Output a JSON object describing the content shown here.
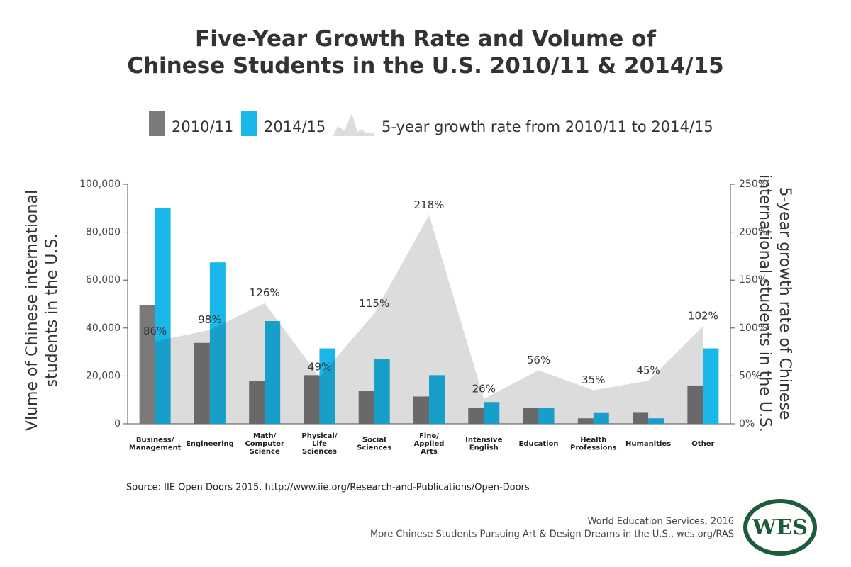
{
  "chart_data": {
    "type": "bar",
    "title": "Five-Year Growth Rate and Volume of\nChinese Students in the U.S. 2010/11 & 2014/15",
    "categories": [
      "Business/\nManagement",
      "Engineering",
      "Math/\nComputer\nScience",
      "Physical/\nLife\nSciences",
      "Social\nSciences",
      "Fine/\nApplied\nArts",
      "Intensive\nEnglish",
      "Education",
      "Health\nProfessions",
      "Humanities",
      "Other"
    ],
    "series": [
      {
        "name": "2010/11",
        "type": "bar",
        "color": "#7a7a7a",
        "values": [
          49500,
          33800,
          18000,
          20300,
          13600,
          11400,
          6800,
          6800,
          2300,
          4600,
          16000
        ]
      },
      {
        "name": "2014/15",
        "type": "bar",
        "color": "#1ab8ea",
        "values": [
          90000,
          67400,
          42900,
          31500,
          27100,
          20300,
          9100,
          6800,
          4500,
          2300,
          31500
        ]
      },
      {
        "name": "5-year growth rate from 2010/11 to 2014/15",
        "type": "area",
        "axis": "y2",
        "color": "#dcdcdc",
        "values": [
          86,
          98,
          126,
          49,
          115,
          218,
          26,
          56,
          35,
          45,
          102
        ],
        "value_labels": [
          "86%",
          "98%",
          "126%",
          "49%",
          "115%",
          "218%",
          "26%",
          "56%",
          "35%",
          "45%",
          "102%"
        ]
      }
    ],
    "ylabel": "Vlume of Chinese international\nstudents in the U.S.",
    "y2label": "5-year growth rate of Chinese\ninternational students in the U.S.",
    "ylim": [
      0,
      100000
    ],
    "yticks": [
      0,
      {
        "value": 20000,
        "label": "20,000"
      },
      {
        "value": 40000,
        "label": "40,000"
      },
      {
        "value": 60000,
        "label": "60,000"
      },
      {
        "value": 80000,
        "label": "80,000"
      },
      {
        "value": 100000,
        "label": "100,000"
      }
    ],
    "y2lim": [
      0,
      250
    ],
    "y2ticks": [
      {
        "value": 0,
        "label": "0%"
      },
      {
        "value": 50,
        "label": "50%"
      },
      {
        "value": 100,
        "label": "100%"
      },
      {
        "value": 150,
        "label": "150%"
      },
      {
        "value": 200,
        "label": "200%"
      },
      {
        "value": 250,
        "label": "250%"
      }
    ],
    "grid": false,
    "source": "Source: IIE Open Doors 2015. http://www.iie.org/Research-and-Publications/Open-Doors",
    "credit": "World Education Services, 2016",
    "reference": "More Chinese Students Pursuing Art & Design Dreams in the U.S., wes.org/RAS",
    "logo": "WES"
  }
}
